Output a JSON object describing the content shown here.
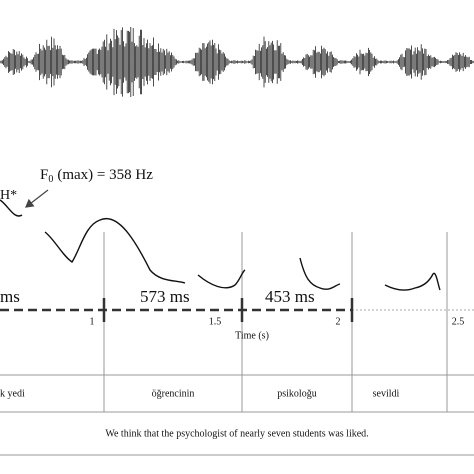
{
  "figure": {
    "pitch_annotation": {
      "symbol": "F",
      "subscript": "0",
      "text": "(max) = 358 Hz"
    },
    "accent_label": "H*",
    "durations": [
      "ms",
      "573 ms",
      "453 ms"
    ],
    "time_axis": {
      "label": "Time (s)",
      "ticks": [
        "1",
        "1.5",
        "2",
        "2.5"
      ]
    },
    "words": [
      "k yedi",
      "öğrencinin",
      "psikoloğu",
      "sevildi"
    ],
    "caption": "We think that the psychologist of nearly seven students was liked."
  }
}
